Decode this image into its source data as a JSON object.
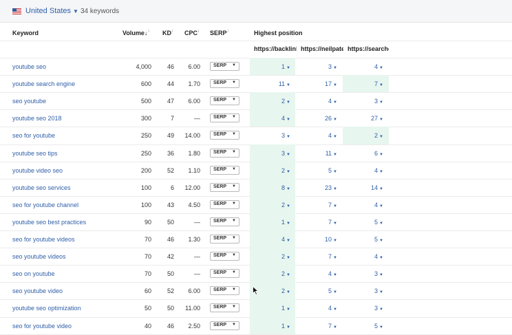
{
  "header": {
    "country": "United States",
    "keyword_count": "34 keywords",
    "flag_icon": "us-flag-icon",
    "dropdown_icon": "caret-down-icon"
  },
  "columns": {
    "keyword": "Keyword",
    "volume": "Volume",
    "volume_sort": "↓",
    "kd": "KD",
    "cpc": "CPC",
    "serp": "SERP",
    "info_mark": "i",
    "highest_position": "Highest position",
    "urls": [
      "https://backlinko",
      "https://neilpatel",
      "https://searchengine"
    ]
  },
  "serp_button_label": "SERP",
  "rows": [
    {
      "keyword": "youtube seo",
      "volume": "4,000",
      "kd": "46",
      "cpc": "6.00",
      "pos": [
        "1",
        "3",
        "4"
      ],
      "best": 0
    },
    {
      "keyword": "youtube search engine",
      "volume": "600",
      "kd": "44",
      "cpc": "1.70",
      "pos": [
        "11",
        "17",
        "7"
      ],
      "best": 2
    },
    {
      "keyword": "seo youtube",
      "volume": "500",
      "kd": "47",
      "cpc": "6.00",
      "pos": [
        "2",
        "4",
        "3"
      ],
      "best": 0
    },
    {
      "keyword": "youtube seo 2018",
      "volume": "300",
      "kd": "7",
      "cpc": "—",
      "pos": [
        "4",
        "26",
        "27"
      ],
      "best": 0
    },
    {
      "keyword": "seo for youtube",
      "volume": "250",
      "kd": "49",
      "cpc": "14.00",
      "pos": [
        "3",
        "4",
        "2"
      ],
      "best": 2
    },
    {
      "keyword": "youtube seo tips",
      "volume": "250",
      "kd": "36",
      "cpc": "1.80",
      "pos": [
        "3",
        "11",
        "6"
      ],
      "best": 0
    },
    {
      "keyword": "youtube video seo",
      "volume": "200",
      "kd": "52",
      "cpc": "1.10",
      "pos": [
        "2",
        "5",
        "4"
      ],
      "best": 0
    },
    {
      "keyword": "youtube seo services",
      "volume": "100",
      "kd": "6",
      "cpc": "12.00",
      "pos": [
        "8",
        "23",
        "14"
      ],
      "best": 0
    },
    {
      "keyword": "seo for youtube channel",
      "volume": "100",
      "kd": "43",
      "cpc": "4.50",
      "pos": [
        "2",
        "7",
        "4"
      ],
      "best": 0
    },
    {
      "keyword": "youtube seo best practices",
      "volume": "90",
      "kd": "50",
      "cpc": "—",
      "pos": [
        "1",
        "7",
        "5"
      ],
      "best": 0
    },
    {
      "keyword": "seo for youtube videos",
      "volume": "70",
      "kd": "46",
      "cpc": "1.30",
      "pos": [
        "4",
        "10",
        "5"
      ],
      "best": 0
    },
    {
      "keyword": "seo youtube videos",
      "volume": "70",
      "kd": "42",
      "cpc": "—",
      "pos": [
        "2",
        "7",
        "4"
      ],
      "best": 0
    },
    {
      "keyword": "seo on youtube",
      "volume": "70",
      "kd": "50",
      "cpc": "—",
      "pos": [
        "2",
        "4",
        "3"
      ],
      "best": 0
    },
    {
      "keyword": "seo youtube video",
      "volume": "60",
      "kd": "52",
      "cpc": "6.00",
      "pos": [
        "2",
        "5",
        "3"
      ],
      "best": 0
    },
    {
      "keyword": "youtube seo optimization",
      "volume": "50",
      "kd": "50",
      "cpc": "11.00",
      "pos": [
        "1",
        "4",
        "3"
      ],
      "best": 0
    },
    {
      "keyword": "seo for youtube video",
      "volume": "40",
      "kd": "46",
      "cpc": "2.50",
      "pos": [
        "1",
        "7",
        "5"
      ],
      "best": 0
    }
  ],
  "colors": {
    "link": "#2f5fa8",
    "highlight": "#e7f6ef"
  }
}
